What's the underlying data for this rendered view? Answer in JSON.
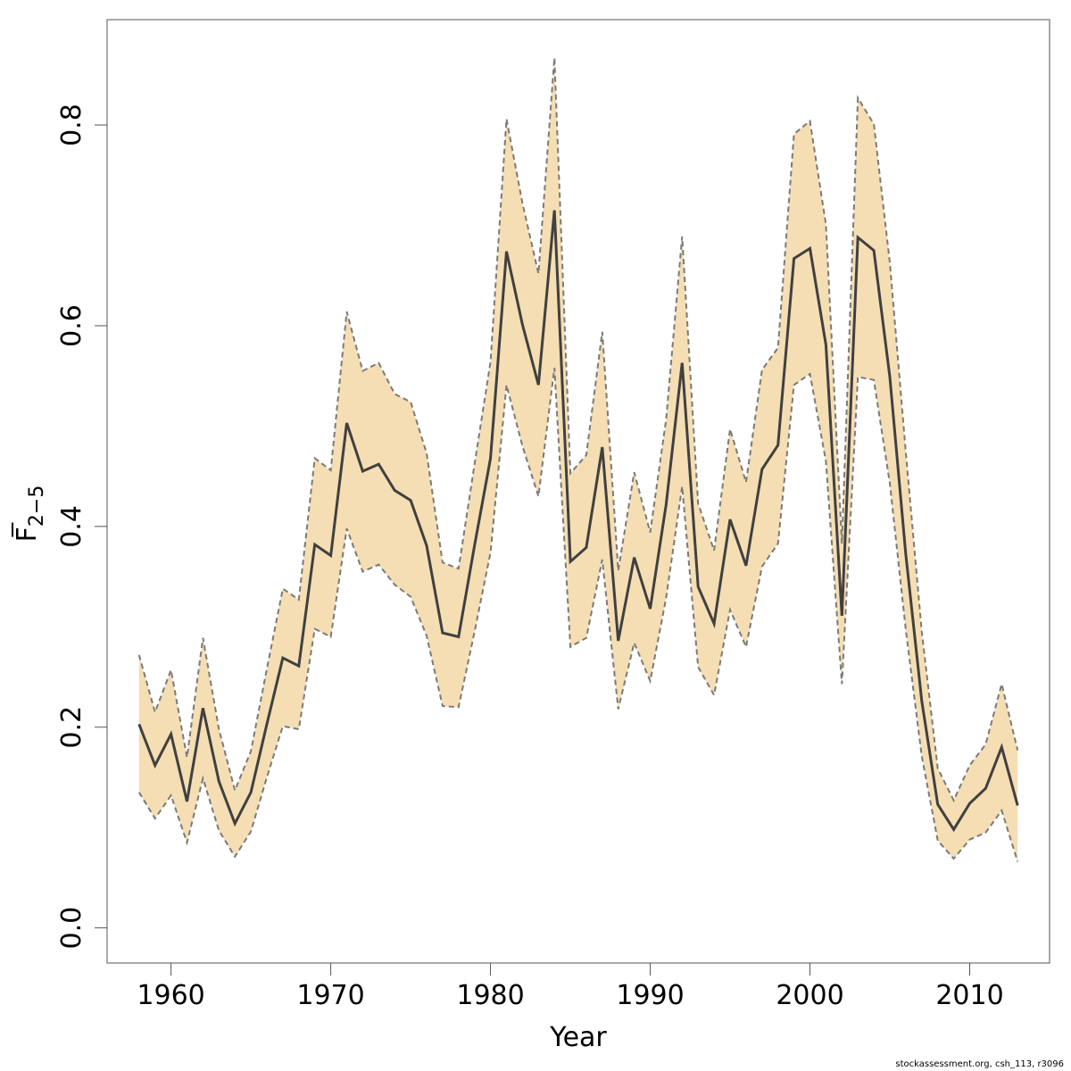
{
  "credit": "stockassessment.org, csh_113, r3096",
  "colors": {
    "band": "#f5deb3",
    "bound_line": "#7a7a7a",
    "estimate_line": "#404040"
  },
  "chart_data": {
    "type": "line",
    "xlabel": "Year",
    "ylabel": {
      "symbol": "F",
      "subscript": "2−5"
    },
    "xlim": [
      1956,
      2015
    ],
    "ylim": [
      -0.035,
      0.905
    ],
    "x_ticks": [
      1960,
      1970,
      1980,
      1990,
      2000,
      2010
    ],
    "y_ticks": [
      0.0,
      0.2,
      0.4,
      0.6,
      0.8
    ],
    "x_tick_labels": [
      "1960",
      "1970",
      "1980",
      "1990",
      "2000",
      "2010"
    ],
    "y_tick_labels": [
      "0.0",
      "0.2",
      "0.4",
      "0.6",
      "0.8"
    ],
    "grid": false,
    "x": [
      1958,
      1959,
      1960,
      1961,
      1962,
      1963,
      1964,
      1965,
      1966,
      1967,
      1968,
      1969,
      1970,
      1971,
      1972,
      1973,
      1974,
      1975,
      1976,
      1977,
      1978,
      1979,
      1980,
      1981,
      1982,
      1983,
      1984,
      1985,
      1986,
      1987,
      1988,
      1989,
      1990,
      1991,
      1992,
      1993,
      1994,
      1995,
      1996,
      1997,
      1998,
      1999,
      2000,
      2001,
      2002,
      2003,
      2004,
      2005,
      2006,
      2007,
      2008,
      2009,
      2010,
      2011,
      2012,
      2013
    ],
    "series": [
      {
        "role": "estimate",
        "values": [
          0.203,
          0.162,
          0.193,
          0.126,
          0.219,
          0.146,
          0.104,
          0.135,
          0.203,
          0.269,
          0.261,
          0.382,
          0.371,
          0.503,
          0.455,
          0.462,
          0.436,
          0.426,
          0.381,
          0.294,
          0.29,
          0.381,
          0.468,
          0.674,
          0.601,
          0.541,
          0.715,
          0.365,
          0.379,
          0.479,
          0.286,
          0.369,
          0.318,
          0.422,
          0.563,
          0.34,
          0.303,
          0.407,
          0.361,
          0.457,
          0.481,
          0.667,
          0.677,
          0.581,
          0.311,
          0.688,
          0.675,
          0.549,
          0.372,
          0.226,
          0.123,
          0.098,
          0.124,
          0.139,
          0.18,
          0.122
        ]
      },
      {
        "role": "upper",
        "values": [
          0.272,
          0.215,
          0.257,
          0.17,
          0.289,
          0.198,
          0.137,
          0.176,
          0.258,
          0.338,
          0.327,
          0.468,
          0.456,
          0.614,
          0.555,
          0.563,
          0.532,
          0.524,
          0.473,
          0.364,
          0.358,
          0.462,
          0.564,
          0.806,
          0.722,
          0.652,
          0.867,
          0.453,
          0.471,
          0.594,
          0.356,
          0.454,
          0.394,
          0.507,
          0.689,
          0.423,
          0.376,
          0.497,
          0.444,
          0.556,
          0.578,
          0.791,
          0.804,
          0.701,
          0.383,
          0.827,
          0.801,
          0.663,
          0.474,
          0.295,
          0.159,
          0.127,
          0.162,
          0.183,
          0.243,
          0.177
        ]
      },
      {
        "role": "lower",
        "values": [
          0.135,
          0.109,
          0.132,
          0.085,
          0.149,
          0.097,
          0.071,
          0.096,
          0.15,
          0.201,
          0.198,
          0.298,
          0.29,
          0.398,
          0.355,
          0.362,
          0.342,
          0.33,
          0.291,
          0.221,
          0.22,
          0.295,
          0.374,
          0.541,
          0.48,
          0.43,
          0.558,
          0.28,
          0.289,
          0.367,
          0.218,
          0.284,
          0.246,
          0.329,
          0.44,
          0.26,
          0.232,
          0.317,
          0.28,
          0.36,
          0.383,
          0.541,
          0.552,
          0.465,
          0.243,
          0.549,
          0.546,
          0.443,
          0.297,
          0.171,
          0.087,
          0.069,
          0.088,
          0.095,
          0.117,
          0.066
        ]
      }
    ]
  }
}
